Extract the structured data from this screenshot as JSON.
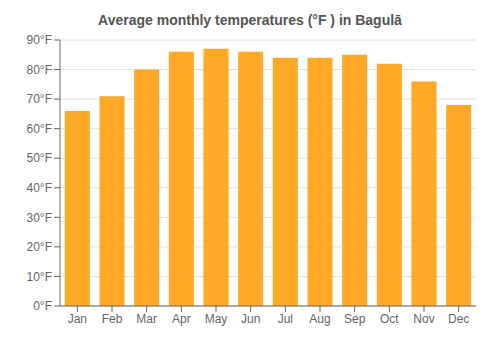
{
  "chart_data": {
    "type": "bar",
    "title": "Average monthly temperatures (°F ) in Bagulā",
    "categories": [
      "Jan",
      "Feb",
      "Mar",
      "Apr",
      "May",
      "Jun",
      "Jul",
      "Aug",
      "Sep",
      "Oct",
      "Nov",
      "Dec"
    ],
    "values": [
      66,
      71,
      80,
      86,
      87,
      86,
      84,
      84,
      85,
      82,
      76,
      68
    ],
    "color": "#FFA726",
    "ylim": [
      0,
      90
    ],
    "yticks": [
      {
        "value": 0,
        "label": "0°F"
      },
      {
        "value": 10,
        "label": "10°F"
      },
      {
        "value": 20,
        "label": "20°F"
      },
      {
        "value": 30,
        "label": "30°F"
      },
      {
        "value": 40,
        "label": "40°F"
      },
      {
        "value": 50,
        "label": "50°F"
      },
      {
        "value": 60,
        "label": "60°F"
      },
      {
        "value": 70,
        "label": "70°F"
      },
      {
        "value": 80,
        "label": "80°F"
      },
      {
        "value": 90,
        "label": "90°F"
      }
    ],
    "grid": true
  }
}
